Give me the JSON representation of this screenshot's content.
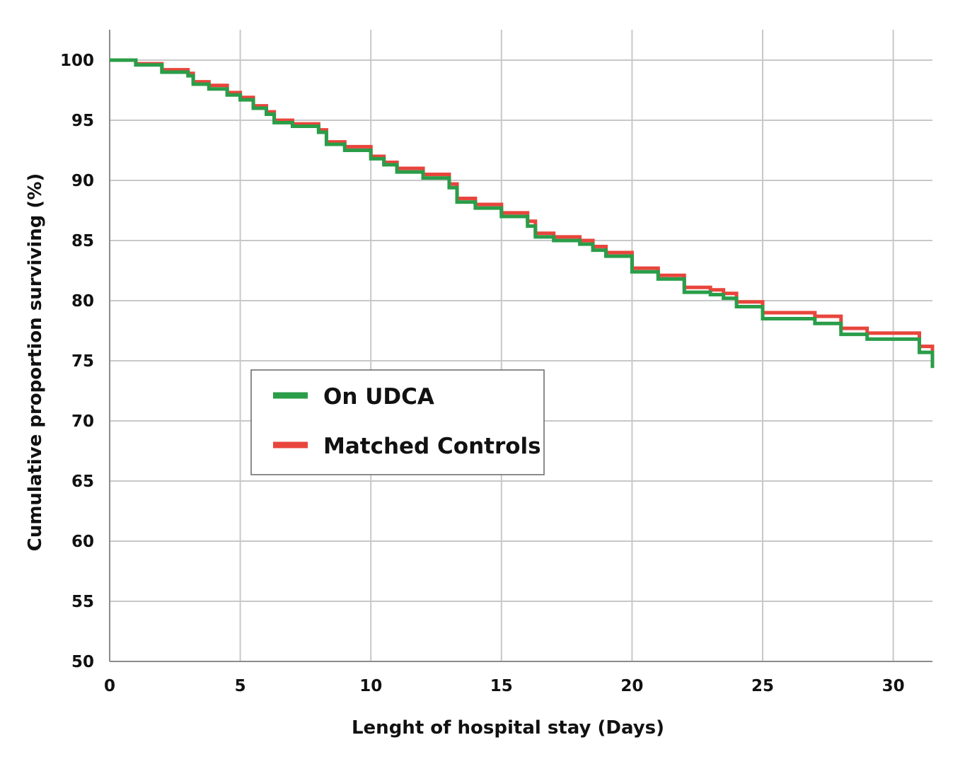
{
  "chart_data": {
    "type": "line",
    "title": "",
    "xlabel": "Lenght of hospital  stay (Days)",
    "ylabel": "Cumulative proportion  surviving (%)",
    "xlim": [
      0,
      31.5
    ],
    "ylim": [
      50,
      100
    ],
    "x_ticks": [
      0,
      5,
      10,
      15,
      20,
      25,
      30
    ],
    "y_ticks": [
      100,
      95,
      90,
      85,
      80,
      75,
      70,
      65,
      60,
      55,
      50
    ],
    "grid": true,
    "legend_position": "center-left",
    "series": [
      {
        "name": "Matched Controls",
        "color": "#e8453c",
        "step": true,
        "x": [
          0,
          1,
          2,
          3,
          3.2,
          3.8,
          4.5,
          5,
          5.5,
          6,
          6.3,
          7,
          8,
          8.3,
          9,
          10,
          10.5,
          11,
          12,
          13,
          13.3,
          14,
          15,
          16,
          16.3,
          17,
          18,
          18.5,
          19,
          20,
          21,
          22,
          23,
          23.5,
          24,
          25,
          27,
          28,
          29,
          31,
          31.5
        ],
        "y": [
          100,
          99.7,
          99.2,
          98.9,
          98.2,
          97.9,
          97.3,
          96.9,
          96.2,
          95.7,
          95.0,
          94.7,
          94.2,
          93.2,
          92.8,
          92.0,
          91.5,
          91.0,
          90.5,
          89.7,
          88.5,
          88.0,
          87.3,
          86.6,
          85.6,
          85.3,
          85.0,
          84.5,
          84.0,
          82.7,
          82.1,
          81.1,
          80.9,
          80.6,
          79.9,
          79.0,
          78.7,
          77.7,
          77.3,
          76.2,
          75.1
        ]
      },
      {
        "name": "On UDCA",
        "color": "#2a9d49",
        "step": true,
        "x": [
          0,
          1,
          2,
          3,
          3.2,
          3.8,
          4.5,
          5,
          5.5,
          6,
          6.3,
          7,
          8,
          8.3,
          9,
          10,
          10.5,
          11,
          12,
          13,
          13.3,
          14,
          15,
          16,
          16.3,
          17,
          18,
          18.5,
          19,
          20,
          21,
          22,
          23,
          23.5,
          24,
          25,
          27,
          28,
          29,
          31,
          31.5
        ],
        "y": [
          100,
          99.6,
          99.0,
          98.7,
          98.0,
          97.6,
          97.1,
          96.7,
          96.0,
          95.5,
          94.8,
          94.5,
          94.0,
          93.0,
          92.5,
          91.8,
          91.3,
          90.7,
          90.2,
          89.4,
          88.2,
          87.7,
          87.0,
          86.2,
          85.3,
          85.0,
          84.7,
          84.2,
          83.7,
          82.4,
          81.8,
          80.7,
          80.5,
          80.2,
          79.5,
          78.5,
          78.1,
          77.2,
          76.8,
          75.7,
          74.4
        ]
      }
    ]
  }
}
